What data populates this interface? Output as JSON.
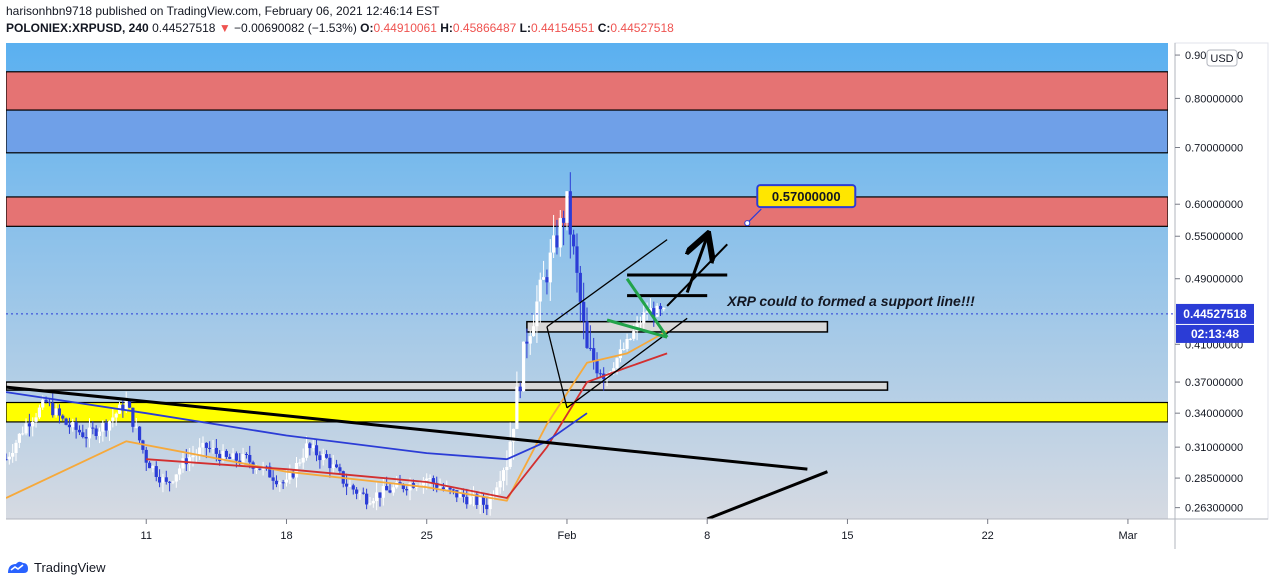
{
  "header": {
    "line1": "harisonhbn9718 published on TradingView.com, February 06, 2021 12:46:14 EST",
    "symbol": "POLONIEX:XRPUSD, 240",
    "last": "0.44527518",
    "change_arrow": "▼",
    "change": "−0.00690082 (−1.53%)",
    "o_label": "O:",
    "o": "0.44910061",
    "h_label": "H:",
    "h": "0.45866487",
    "l_label": "L:",
    "l": "0.44154551",
    "c_label": "C:",
    "c": "0.44527518"
  },
  "footer": {
    "brand": "TradingView",
    "logo_icon": "tradingview-logo-icon"
  },
  "currency_badge": "USD",
  "price_tag": {
    "value": "0.44527518",
    "countdown": "02:13:48"
  },
  "target_label": "0.57000000",
  "annotation": "XRP could to formed a support line!!!",
  "colors": {
    "bg_top": "#5ab0f0",
    "bg_bottom": "#d4d8e0",
    "resistance": "#e57373",
    "blue_zone": "#6fa0e8",
    "yellow_zone": "#ffff00",
    "candle_up": "#ffffff",
    "candle_down": "#2b3cd6",
    "ma_fast": "#f6a93b",
    "ma_mid": "#d32f2f",
    "ma_slow": "#2b3cd6",
    "price_tag": "#2b3cd6",
    "target_bg": "#ffe600",
    "target_border": "#2b3cd6"
  },
  "chart_data": {
    "type": "candlestick",
    "symbol": "POLONIEX:XRPUSD",
    "timeframe": "240",
    "y_scale": "log",
    "ylim": [
      0.255,
      0.93
    ],
    "x_range": [
      "2021-01-04",
      "2021-03-03"
    ],
    "y_ticks": [
      0.263,
      0.285,
      0.31,
      0.34,
      0.37,
      0.41,
      0.49,
      0.55,
      0.6,
      0.7,
      0.8,
      0.9
    ],
    "y_tick_labels": [
      "0.26300000",
      "0.28500000",
      "0.31000000",
      "0.34000000",
      "0.37000000",
      "0.41000000",
      "0.49000000",
      "0.55000000",
      "0.60000000",
      "0.70000000",
      "0.80000000",
      "0.90000000"
    ],
    "x_ticks": [
      {
        "date": "2021-01-11",
        "label": "11"
      },
      {
        "date": "2021-01-18",
        "label": "18"
      },
      {
        "date": "2021-01-25",
        "label": "25"
      },
      {
        "date": "2021-02-01",
        "label": "Feb"
      },
      {
        "date": "2021-02-08",
        "label": "8"
      },
      {
        "date": "2021-02-15",
        "label": "15"
      },
      {
        "date": "2021-02-22",
        "label": "22"
      },
      {
        "date": "2021-03-01",
        "label": "Mar"
      }
    ],
    "price_path": [
      [
        "2021-01-04",
        0.3
      ],
      [
        "2021-01-05",
        0.33
      ],
      [
        "2021-01-06",
        0.35
      ],
      [
        "2021-01-07",
        0.33
      ],
      [
        "2021-01-08",
        0.32
      ],
      [
        "2021-01-09",
        0.33
      ],
      [
        "2021-01-10",
        0.35
      ],
      [
        "2021-01-11",
        0.3
      ],
      [
        "2021-01-12",
        0.28
      ],
      [
        "2021-01-13",
        0.3
      ],
      [
        "2021-01-14",
        0.31
      ],
      [
        "2021-01-15",
        0.3
      ],
      [
        "2021-01-16",
        0.3
      ],
      [
        "2021-01-17",
        0.29
      ],
      [
        "2021-01-18",
        0.28
      ],
      [
        "2021-01-19",
        0.31
      ],
      [
        "2021-01-20",
        0.3
      ],
      [
        "2021-01-21",
        0.28
      ],
      [
        "2021-01-22",
        0.27
      ],
      [
        "2021-01-23",
        0.275
      ],
      [
        "2021-01-24",
        0.28
      ],
      [
        "2021-01-25",
        0.285
      ],
      [
        "2021-01-26",
        0.275
      ],
      [
        "2021-01-27",
        0.27
      ],
      [
        "2021-01-28",
        0.265
      ],
      [
        "2021-01-29",
        0.3
      ],
      [
        "2021-01-30",
        0.42
      ],
      [
        "2021-01-31",
        0.5
      ],
      [
        "2021-02-01",
        0.6
      ],
      [
        "2021-02-02",
        0.4
      ],
      [
        "2021-02-03",
        0.38
      ],
      [
        "2021-02-04",
        0.41
      ],
      [
        "2021-02-05",
        0.45
      ],
      [
        "2021-02-06",
        0.445
      ]
    ],
    "moving_averages": [
      {
        "color": "orange",
        "values": [
          [
            "2021-01-04",
            0.27
          ],
          [
            "2021-01-10",
            0.315
          ],
          [
            "2021-01-18",
            0.29
          ],
          [
            "2021-01-25",
            0.278
          ],
          [
            "2021-01-29",
            0.268
          ],
          [
            "2021-01-31",
            0.33
          ],
          [
            "2021-02-02",
            0.39
          ],
          [
            "2021-02-04",
            0.4
          ],
          [
            "2021-02-06",
            0.425
          ]
        ]
      },
      {
        "color": "red",
        "values": [
          [
            "2021-01-11",
            0.3
          ],
          [
            "2021-01-18",
            0.292
          ],
          [
            "2021-01-25",
            0.282
          ],
          [
            "2021-01-29",
            0.27
          ],
          [
            "2021-01-31",
            0.31
          ],
          [
            "2021-02-02",
            0.37
          ],
          [
            "2021-02-04",
            0.385
          ],
          [
            "2021-02-06",
            0.4
          ]
        ]
      },
      {
        "color": "blue",
        "values": [
          [
            "2021-01-04",
            0.36
          ],
          [
            "2021-01-11",
            0.34
          ],
          [
            "2021-01-18",
            0.32
          ],
          [
            "2021-01-25",
            0.305
          ],
          [
            "2021-01-29",
            0.3
          ],
          [
            "2021-01-31",
            0.315
          ],
          [
            "2021-02-02",
            0.34
          ]
        ]
      }
    ],
    "zones": [
      {
        "kind": "resistance",
        "from": 0.775,
        "to": 0.86
      },
      {
        "kind": "blue",
        "from": 0.69,
        "to": 0.775
      },
      {
        "kind": "resistance",
        "from": 0.565,
        "to": 0.612
      },
      {
        "kind": "yellow",
        "from": 0.332,
        "to": 0.35
      },
      {
        "kind": "support-box",
        "from": 0.362,
        "to": 0.37,
        "x_start": "2021-01-04",
        "x_end": "2021-02-17"
      },
      {
        "kind": "support-box",
        "from": 0.424,
        "to": 0.436,
        "x_start": "2021-01-30",
        "x_end": "2021-02-14"
      }
    ],
    "lines": [
      {
        "kind": "trendline",
        "from": [
          "2021-01-04",
          0.365
        ],
        "to": [
          "2021-02-13",
          0.292
        ]
      },
      {
        "kind": "trendline",
        "from": [
          "2021-02-08",
          0.255
        ],
        "to": [
          "2021-02-14",
          0.29
        ]
      },
      {
        "kind": "horizontal",
        "price": 0.468,
        "from": "2021-02-04",
        "to": "2021-02-08"
      },
      {
        "kind": "horizontal",
        "price": 0.495,
        "from": "2021-02-04",
        "to": "2021-02-09"
      }
    ],
    "target": {
      "date": "2021-02-10",
      "price": 0.57,
      "label": "0.57000000"
    },
    "last_price": 0.44527518
  }
}
